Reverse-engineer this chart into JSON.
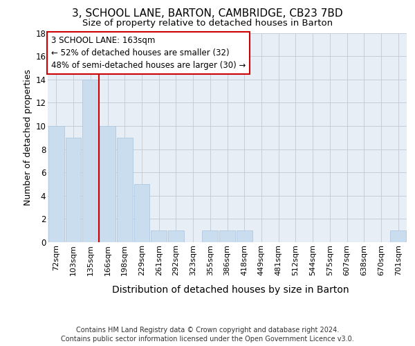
{
  "title": "3, SCHOOL LANE, BARTON, CAMBRIDGE, CB23 7BD",
  "subtitle": "Size of property relative to detached houses in Barton",
  "xlabel": "Distribution of detached houses by size in Barton",
  "ylabel": "Number of detached properties",
  "categories": [
    "72sqm",
    "103sqm",
    "135sqm",
    "166sqm",
    "198sqm",
    "229sqm",
    "261sqm",
    "292sqm",
    "323sqm",
    "355sqm",
    "386sqm",
    "418sqm",
    "449sqm",
    "481sqm",
    "512sqm",
    "544sqm",
    "575sqm",
    "607sqm",
    "638sqm",
    "670sqm",
    "701sqm"
  ],
  "values": [
    10,
    9,
    14,
    10,
    9,
    5,
    1,
    1,
    0,
    1,
    1,
    1,
    0,
    0,
    0,
    0,
    0,
    0,
    0,
    0,
    1
  ],
  "bar_color": "#c9ddef",
  "bar_edge_color": "#b0c8e0",
  "vline_x": 2.5,
  "vline_color": "#cc0000",
  "annotation_text": "3 SCHOOL LANE: 163sqm\n← 52% of detached houses are smaller (32)\n48% of semi-detached houses are larger (30) →",
  "annotation_box_color": "#ffffff",
  "annotation_box_edge_color": "#cc0000",
  "ylim": [
    0,
    18
  ],
  "yticks": [
    0,
    2,
    4,
    6,
    8,
    10,
    12,
    14,
    16,
    18
  ],
  "bg_color": "#e8eef5",
  "footer1": "Contains HM Land Registry data © Crown copyright and database right 2024.",
  "footer2": "Contains public sector information licensed under the Open Government Licence v3.0.",
  "title_fontsize": 11,
  "subtitle_fontsize": 9.5,
  "ylabel_fontsize": 9,
  "xlabel_fontsize": 10,
  "tick_fontsize": 8,
  "annotation_fontsize": 8.5,
  "footer_fontsize": 7
}
